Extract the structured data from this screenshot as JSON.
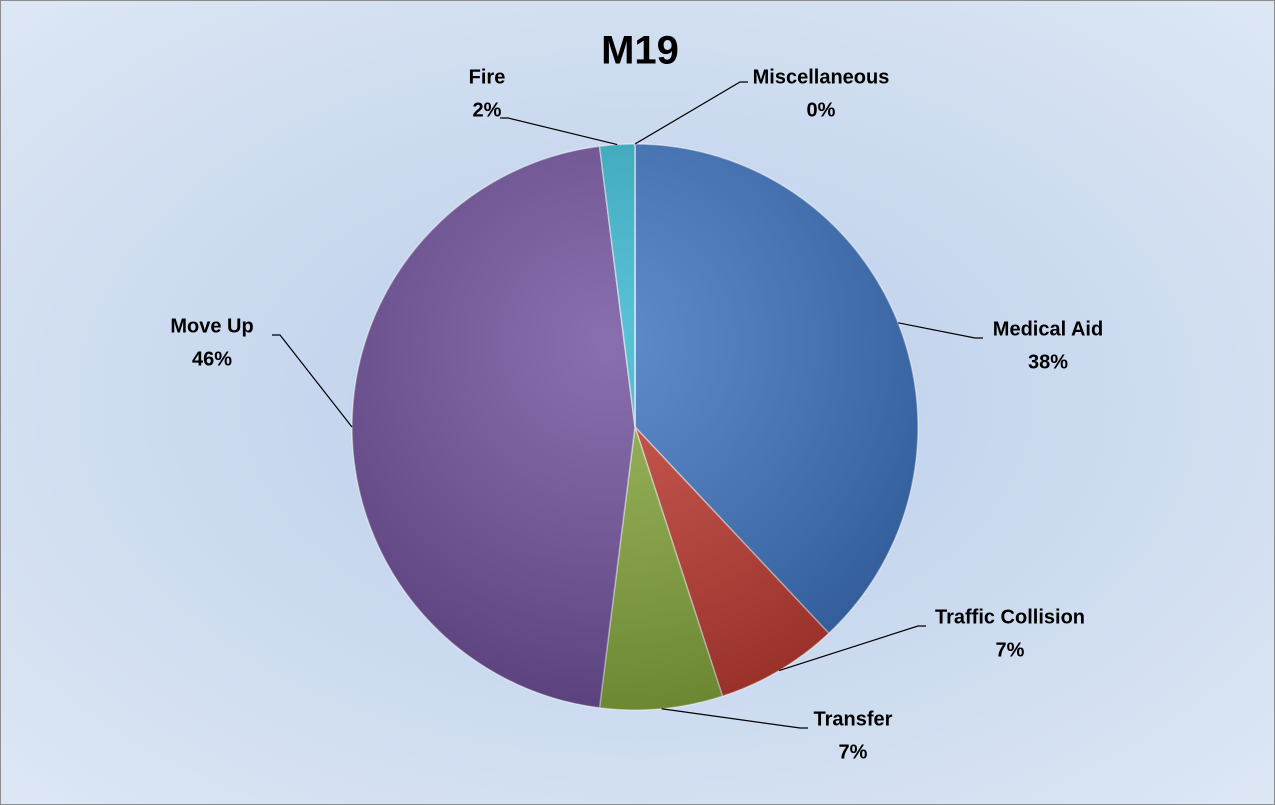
{
  "chart_data": {
    "type": "pie",
    "title": "M19",
    "categories": [
      "Medical Aid",
      "Traffic Collision",
      "Transfer",
      "Move Up",
      "Fire",
      "Miscellaneous"
    ],
    "values": [
      38,
      7,
      7,
      46,
      2,
      0
    ],
    "value_labels": [
      "38%",
      "7%",
      "7%",
      "46%",
      "2%",
      "0%"
    ],
    "colors": [
      "#3b72c0",
      "#c03a31",
      "#86a83b",
      "#6f4f9b",
      "#35b6cf",
      "#e07b2a"
    ]
  }
}
